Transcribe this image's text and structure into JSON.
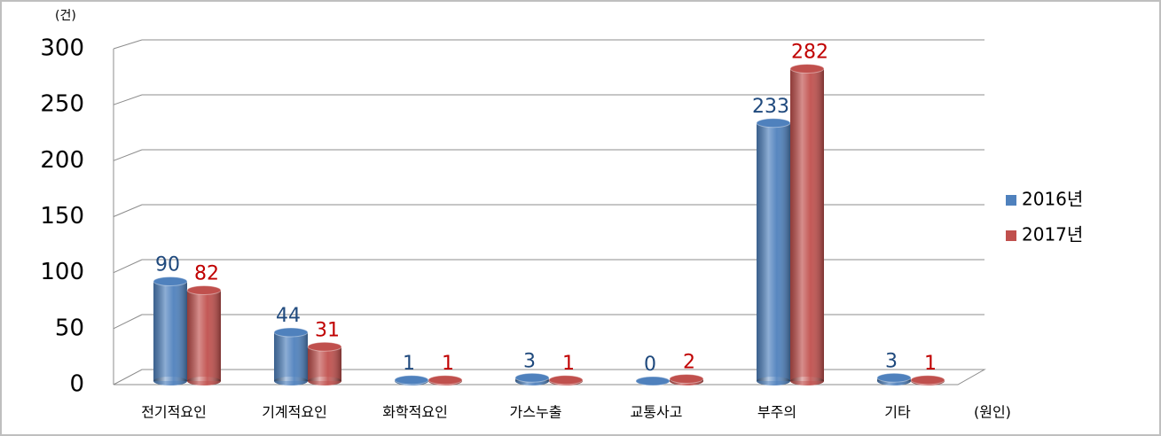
{
  "chart_data": {
    "type": "bar3d",
    "y_unit": "(건)",
    "x_unit": "(원인)",
    "categories": [
      "전기적요인",
      "기계적요인",
      "화학적요인",
      "가스누출",
      "교통사고",
      "부주의",
      "기타"
    ],
    "series": [
      {
        "name": "2016년",
        "color": "#4f81bd",
        "label_color": "#1f497d",
        "values": [
          90,
          44,
          1,
          3,
          0,
          233,
          3
        ]
      },
      {
        "name": "2017년",
        "color": "#c0504d",
        "label_color": "#c00000",
        "values": [
          82,
          31,
          1,
          1,
          2,
          282,
          1
        ]
      }
    ],
    "ylim": [
      0,
      300
    ],
    "yticks": [
      0,
      50,
      100,
      150,
      200,
      250,
      300
    ],
    "grid": true,
    "legend": "right"
  }
}
